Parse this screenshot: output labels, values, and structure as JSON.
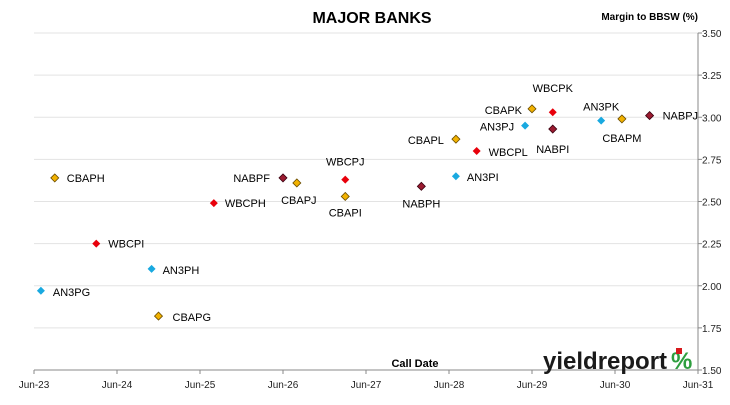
{
  "chart_data": {
    "type": "scatter",
    "title": "MAJOR BANKS",
    "ylabel": "Margin to BBSW (%)",
    "xlabel": "Call Date",
    "x_ticks": [
      "Jun-23",
      "Jun-24",
      "Jun-25",
      "Jun-26",
      "Jun-27",
      "Jun-28",
      "Jun-29",
      "Jun-30",
      "Jun-31"
    ],
    "y_ticks": [
      "1.50",
      "1.75",
      "2.00",
      "2.25",
      "2.50",
      "2.75",
      "3.00",
      "3.25",
      "3.50"
    ],
    "ylim": [
      1.5,
      3.5
    ],
    "xlim": [
      "Jun-23",
      "Jun-31"
    ],
    "y_axis_side": "right",
    "grid": "horizontal",
    "legend": "none",
    "series": [
      {
        "bank": "CBA",
        "marker": "diamond",
        "color": "#F2B200",
        "points": [
          {
            "label": "CBAPH",
            "x": "Sep-23",
            "y": 2.64
          },
          {
            "label": "CBAPG",
            "x": "Dec-24",
            "y": 1.82
          },
          {
            "label": "CBAPJ",
            "x": "Aug-26",
            "y": 2.61
          },
          {
            "label": "CBAPI",
            "x": "Mar-27",
            "y": 2.53
          },
          {
            "label": "CBAPL",
            "x": "Jul-28",
            "y": 2.87
          },
          {
            "label": "CBAPK",
            "x": "Jun-29",
            "y": 3.05
          },
          {
            "label": "CBAPM",
            "x": "Jul-30",
            "y": 2.99
          }
        ]
      },
      {
        "bank": "WBC",
        "marker": "diamond",
        "color": "#E8000B",
        "points": [
          {
            "label": "WBCPI",
            "x": "Mar-24",
            "y": 2.25
          },
          {
            "label": "WBCPH",
            "x": "Aug-25",
            "y": 2.49
          },
          {
            "label": "WBCPJ",
            "x": "Mar-27",
            "y": 2.63
          },
          {
            "label": "WBCPL",
            "x": "Oct-28",
            "y": 2.8
          },
          {
            "label": "WBCPK",
            "x": "Sep-29",
            "y": 3.03
          }
        ]
      },
      {
        "bank": "NAB",
        "marker": "diamond",
        "color": "#9B1B30",
        "points": [
          {
            "label": "NABPF",
            "x": "Jun-26",
            "y": 2.64
          },
          {
            "label": "NABPH",
            "x": "Feb-28",
            "y": 2.59
          },
          {
            "label": "NABPI",
            "x": "Sep-29",
            "y": 2.93
          },
          {
            "label": "NABPJ",
            "x": "Nov-30",
            "y": 3.01
          }
        ]
      },
      {
        "bank": "AN3",
        "marker": "diamond",
        "color": "#19A9E0",
        "points": [
          {
            "label": "AN3PG",
            "x": "Jul-23",
            "y": 1.97
          },
          {
            "label": "AN3PH",
            "x": "Nov-24",
            "y": 2.1
          },
          {
            "label": "AN3PI",
            "x": "Jul-28",
            "y": 2.65
          },
          {
            "label": "AN3PJ",
            "x": "May-29",
            "y": 2.95
          },
          {
            "label": "AN3PK",
            "x": "Apr-30",
            "y": 2.98
          }
        ]
      }
    ]
  },
  "branding": {
    "logo_text": "yieldreport",
    "logo_symbol": "%",
    "logo_color": "#1a1a1a",
    "logo_accent_red": "#D7191C",
    "logo_accent_green": "#2E9E3E"
  }
}
